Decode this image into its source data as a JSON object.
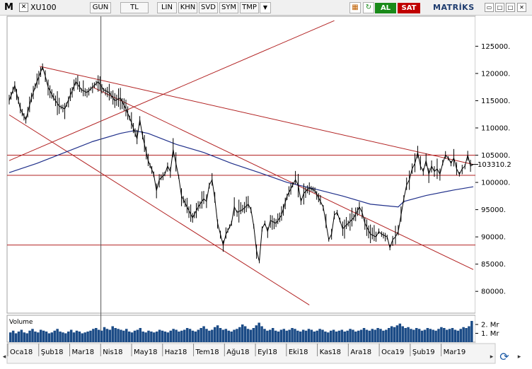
{
  "window": {
    "brand_logo": "M",
    "symbol": "XU100",
    "toolbar_buttons": [
      "GUN",
      "TL",
      "LIN",
      "KHN",
      "SVD",
      "SYM",
      "TMP"
    ],
    "buy_label": "AL",
    "sell_label": "SAT",
    "brand": "MATRİKS",
    "close_glyph": "✕",
    "dropdown_glyph": "▼",
    "minimize_glyph": "▭",
    "maximize_glyph": "□",
    "refresh_glyph": "⟳"
  },
  "chart_data": {
    "type": "line",
    "price_axis": {
      "ticks": [
        125000,
        120000,
        115000,
        110000,
        105000,
        100000,
        95000,
        90000,
        85000,
        80000
      ],
      "tick_labels": [
        "125000.",
        "120000.",
        "115000.",
        "110000.",
        "105000.",
        "100000.",
        "95000.",
        "90000.",
        "85000.",
        "80000."
      ],
      "range": [
        76000,
        130500
      ],
      "last_value": 103310.2,
      "last_value_label": "103310.2"
    },
    "volume_axis": {
      "tick_labels": [
        "2. Mr",
        "1. Mr"
      ],
      "ticks": [
        2,
        1
      ],
      "range": [
        0,
        2.8
      ],
      "label": "Volume"
    },
    "time_axis": {
      "labels": [
        "Oca18",
        "Şub18",
        "Mar18",
        "Nis18",
        "May18",
        "Haz18",
        "Tem18",
        "Ağu18",
        "Eyl18",
        "Eki18",
        "Kas18",
        "Ara18",
        "Oca19",
        "Şub19",
        "Mar19"
      ]
    },
    "price_series": [
      [
        0,
        115000
      ],
      [
        2,
        117800
      ],
      [
        4,
        113500
      ],
      [
        6,
        111500
      ],
      [
        8,
        115500
      ],
      [
        10,
        118500
      ],
      [
        12,
        121200
      ],
      [
        13,
        119500
      ],
      [
        14,
        117500
      ],
      [
        16,
        115500
      ],
      [
        18,
        114000
      ],
      [
        20,
        113500
      ],
      [
        22,
        116000
      ],
      [
        24,
        118500
      ],
      [
        26,
        117000
      ],
      [
        28,
        116500
      ],
      [
        30,
        117500
      ],
      [
        32,
        118500
      ],
      [
        34,
        117000
      ],
      [
        36,
        116500
      ],
      [
        38,
        115000
      ],
      [
        40,
        115500
      ],
      [
        42,
        113500
      ],
      [
        44,
        111000
      ],
      [
        46,
        108000
      ],
      [
        47,
        111500
      ],
      [
        48,
        108500
      ],
      [
        50,
        104000
      ],
      [
        52,
        101500
      ],
      [
        53,
        98500
      ],
      [
        54,
        100500
      ],
      [
        56,
        101500
      ],
      [
        57,
        103000
      ],
      [
        58,
        102000
      ],
      [
        59,
        106000
      ],
      [
        60,
        103500
      ],
      [
        61,
        101000
      ],
      [
        62,
        97500
      ],
      [
        64,
        95500
      ],
      [
        66,
        93500
      ],
      [
        68,
        95500
      ],
      [
        70,
        97000
      ],
      [
        71,
        96500
      ],
      [
        72,
        99500
      ],
      [
        73,
        100500
      ],
      [
        74,
        97000
      ],
      [
        75,
        92500
      ],
      [
        76,
        90500
      ],
      [
        77,
        88500
      ],
      [
        78,
        90500
      ],
      [
        80,
        92500
      ],
      [
        81,
        95500
      ],
      [
        82,
        94500
      ],
      [
        84,
        95000
      ],
      [
        86,
        96000
      ],
      [
        87,
        95000
      ],
      [
        88,
        92000
      ],
      [
        89,
        87500
      ],
      [
        90,
        85500
      ],
      [
        91,
        91500
      ],
      [
        92,
        92500
      ],
      [
        93,
        91000
      ],
      [
        94,
        93000
      ],
      [
        96,
        92500
      ],
      [
        98,
        94000
      ],
      [
        100,
        97500
      ],
      [
        102,
        99500
      ],
      [
        103,
        100500
      ],
      [
        104,
        99500
      ],
      [
        105,
        96500
      ],
      [
        106,
        98000
      ],
      [
        108,
        99000
      ],
      [
        110,
        98500
      ],
      [
        112,
        96500
      ],
      [
        113,
        95500
      ],
      [
        114,
        92500
      ],
      [
        115,
        89500
      ],
      [
        116,
        90500
      ],
      [
        117,
        94000
      ],
      [
        118,
        94500
      ],
      [
        119,
        93000
      ],
      [
        120,
        91500
      ],
      [
        122,
        92500
      ],
      [
        124,
        93500
      ],
      [
        126,
        95500
      ],
      [
        127,
        94500
      ],
      [
        128,
        92500
      ],
      [
        130,
        90500
      ],
      [
        132,
        90000
      ],
      [
        133,
        91000
      ],
      [
        134,
        90500
      ],
      [
        136,
        90000
      ],
      [
        137,
        88000
      ],
      [
        138,
        89500
      ],
      [
        139,
        90000
      ],
      [
        140,
        91000
      ],
      [
        141,
        94000
      ],
      [
        142,
        97000
      ],
      [
        143,
        99500
      ],
      [
        144,
        100500
      ],
      [
        145,
        102500
      ],
      [
        146,
        103500
      ],
      [
        147,
        105500
      ],
      [
        148,
        103000
      ],
      [
        149,
        102000
      ],
      [
        150,
        104000
      ],
      [
        151,
        101500
      ],
      [
        152,
        103000
      ],
      [
        153,
        102000
      ],
      [
        154,
        102500
      ],
      [
        155,
        101500
      ],
      [
        156,
        103500
      ],
      [
        157,
        105000
      ],
      [
        158,
        104500
      ],
      [
        159,
        103500
      ],
      [
        160,
        104500
      ],
      [
        161,
        102500
      ],
      [
        162,
        101500
      ],
      [
        163,
        102500
      ],
      [
        164,
        103000
      ],
      [
        165,
        105000
      ],
      [
        166,
        103000
      ],
      [
        167,
        103310
      ]
    ],
    "moving_average": [
      [
        0,
        101800
      ],
      [
        10,
        103500
      ],
      [
        20,
        105500
      ],
      [
        30,
        107500
      ],
      [
        40,
        109000
      ],
      [
        45,
        109500
      ],
      [
        50,
        109000
      ],
      [
        60,
        107000
      ],
      [
        70,
        105500
      ],
      [
        80,
        103500
      ],
      [
        90,
        101800
      ],
      [
        100,
        100000
      ],
      [
        110,
        98800
      ],
      [
        120,
        97500
      ],
      [
        130,
        96000
      ],
      [
        140,
        95500
      ],
      [
        142,
        96500
      ],
      [
        150,
        97600
      ],
      [
        160,
        98600
      ],
      [
        167,
        99200
      ]
    ],
    "horizontal_levels": [
      105000,
      101300,
      88500
    ],
    "trend_lines": [
      {
        "from": [
          11,
          121300
        ],
        "to": [
          167,
          103300
        ]
      },
      {
        "from": [
          0,
          104000
        ],
        "to": [
          117,
          129700
        ]
      },
      {
        "from": [
          0,
          112400
        ],
        "to": [
          108,
          77500
        ]
      },
      {
        "from": [
          30,
          117500
        ],
        "to": [
          167,
          84000
        ]
      }
    ],
    "cursor_x": 33,
    "volume_values": [
      1.1,
      1.3,
      1.0,
      1.2,
      1.4,
      1.1,
      1.0,
      1.3,
      1.5,
      1.2,
      1.1,
      1.4,
      1.3,
      1.2,
      1.0,
      1.1,
      1.3,
      1.5,
      1.2,
      1.1,
      1.0,
      1.2,
      1.4,
      1.1,
      1.3,
      1.2,
      1.0,
      1.1,
      1.2,
      1.3,
      1.5,
      1.6,
      1.4,
      1.3,
      1.7,
      1.5,
      1.4,
      1.8,
      1.6,
      1.5,
      1.4,
      1.3,
      1.5,
      1.2,
      1.1,
      1.3,
      1.4,
      1.6,
      1.2,
      1.1,
      1.3,
      1.2,
      1.1,
      1.2,
      1.4,
      1.3,
      1.2,
      1.1,
      1.3,
      1.5,
      1.4,
      1.2,
      1.3,
      1.4,
      1.6,
      1.5,
      1.3,
      1.2,
      1.4,
      1.6,
      1.8,
      1.5,
      1.3,
      1.4,
      1.7,
      1.9,
      1.6,
      1.4,
      1.5,
      1.3,
      1.2,
      1.4,
      1.5,
      1.7,
      2.0,
      1.8,
      1.5,
      1.4,
      1.6,
      1.9,
      2.2,
      1.8,
      1.5,
      1.3,
      1.4,
      1.6,
      1.3,
      1.2,
      1.4,
      1.5,
      1.3,
      1.4,
      1.6,
      1.5,
      1.3,
      1.2,
      1.4,
      1.3,
      1.5,
      1.4,
      1.2,
      1.3,
      1.5,
      1.4,
      1.2,
      1.1,
      1.3,
      1.4,
      1.2,
      1.3,
      1.4,
      1.2,
      1.3,
      1.5,
      1.4,
      1.2,
      1.3,
      1.4,
      1.6,
      1.4,
      1.3,
      1.5,
      1.4,
      1.6,
      1.5,
      1.3,
      1.4,
      1.6,
      1.8,
      1.7,
      1.9,
      2.1,
      1.8,
      1.6,
      1.7,
      1.5,
      1.4,
      1.6,
      1.5,
      1.3,
      1.4,
      1.6,
      1.5,
      1.4,
      1.3,
      1.5,
      1.7,
      1.6,
      1.4,
      1.5,
      1.6,
      1.4,
      1.3,
      1.5,
      1.7,
      1.6,
      1.8,
      2.4
    ]
  }
}
